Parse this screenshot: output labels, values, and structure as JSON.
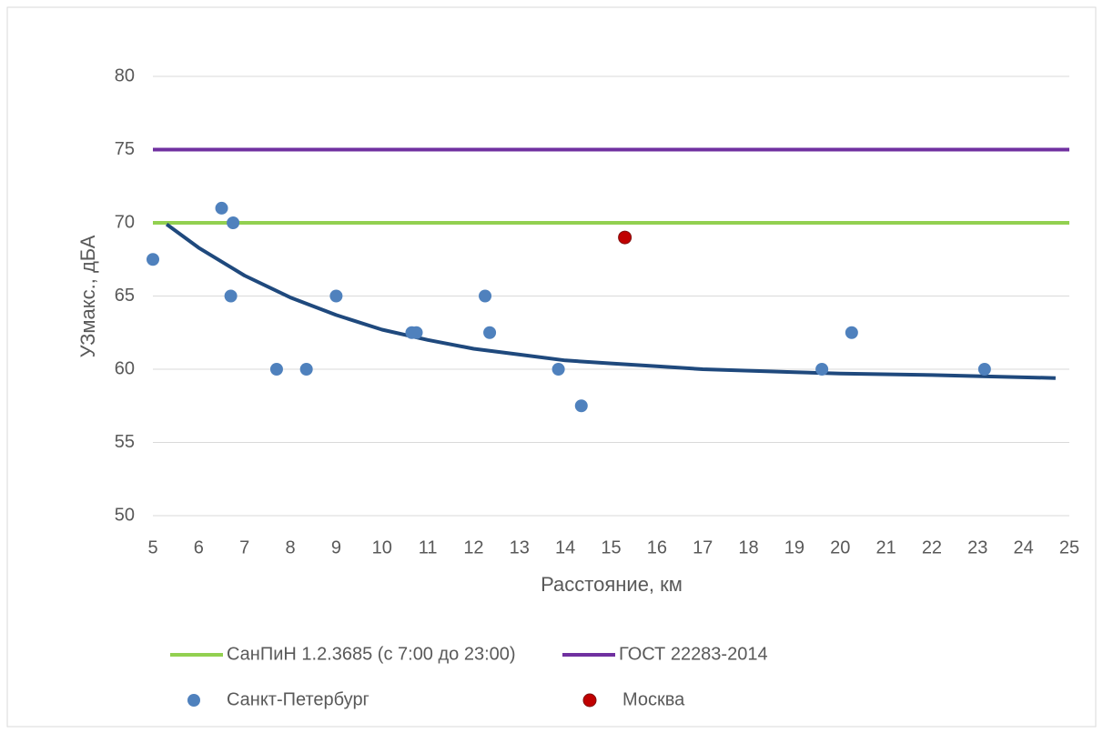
{
  "chart_data": {
    "type": "scatter",
    "x_label": "Расстояние, км",
    "y_label": "УЗмакс., дБА",
    "xlim": [
      5,
      25
    ],
    "xticks": [
      5,
      6,
      7,
      8,
      9,
      10,
      11,
      12,
      13,
      14,
      15,
      16,
      17,
      18,
      19,
      20,
      21,
      22,
      23,
      24,
      25
    ],
    "ylim": [
      50,
      80
    ],
    "yticks": [
      50,
      55,
      60,
      65,
      70,
      75,
      80
    ],
    "grid": true,
    "reference_lines": [
      {
        "name": "СанПиН 1.2.3685 (с 7:00 до 23:00)",
        "color": "#92d050",
        "value": 70
      },
      {
        "name": "ГОСТ 22283-2014",
        "color": "#7030a0",
        "value": 75
      }
    ],
    "series": [
      {
        "name": "Санкт-Петербург",
        "color": "#4f81bd",
        "x": [
          5.0,
          6.5,
          6.75,
          6.7,
          7.7,
          8.35,
          9.0,
          10.65,
          10.75,
          12.25,
          12.35,
          13.85,
          14.35,
          19.6,
          20.25,
          23.15
        ],
        "values": [
          67.5,
          71,
          70,
          65,
          60,
          60,
          65,
          62.5,
          62.5,
          65,
          62.5,
          60,
          57.5,
          60,
          62.5,
          60
        ]
      },
      {
        "name": "Москва",
        "color": "#c00000",
        "x": [
          15.3
        ],
        "values": [
          69
        ]
      }
    ],
    "trendline": {
      "color": "#1f497d",
      "x": [
        5.3,
        6,
        7,
        8,
        9,
        10,
        11,
        12,
        13,
        14,
        15,
        16,
        17,
        18,
        19,
        20,
        22,
        24.7
      ],
      "values": [
        69.9,
        68.3,
        66.4,
        64.9,
        63.7,
        62.7,
        62.0,
        61.4,
        61.0,
        60.6,
        60.4,
        60.2,
        60.0,
        59.9,
        59.8,
        59.7,
        59.6,
        59.4
      ]
    }
  }
}
